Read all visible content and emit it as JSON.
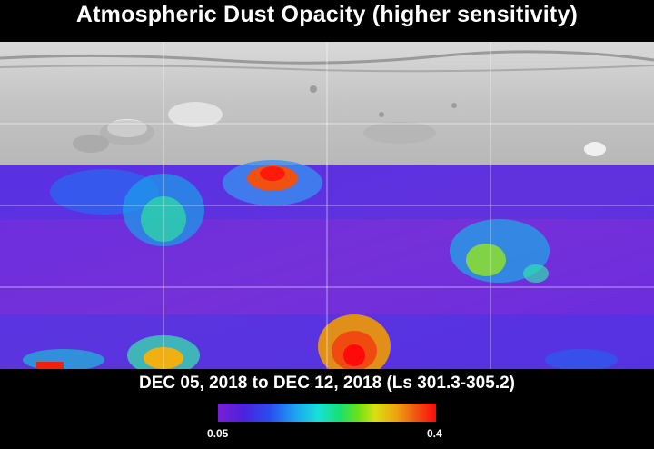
{
  "title": "Atmospheric Dust Opacity (higher sensitivity)",
  "date_range": "DEC 05, 2018 to DEC 12, 2018 (Ls 301.3-305.2)",
  "colorbar": {
    "min_label": "0.05",
    "max_label": "0.4",
    "colors": [
      "#7a1fd6",
      "#4a22e0",
      "#2a4ef0",
      "#1ca6f0",
      "#18e0d8",
      "#18e070",
      "#6ae018",
      "#d8e010",
      "#f0a010",
      "#f04a10",
      "#ff0a0a"
    ]
  }
}
